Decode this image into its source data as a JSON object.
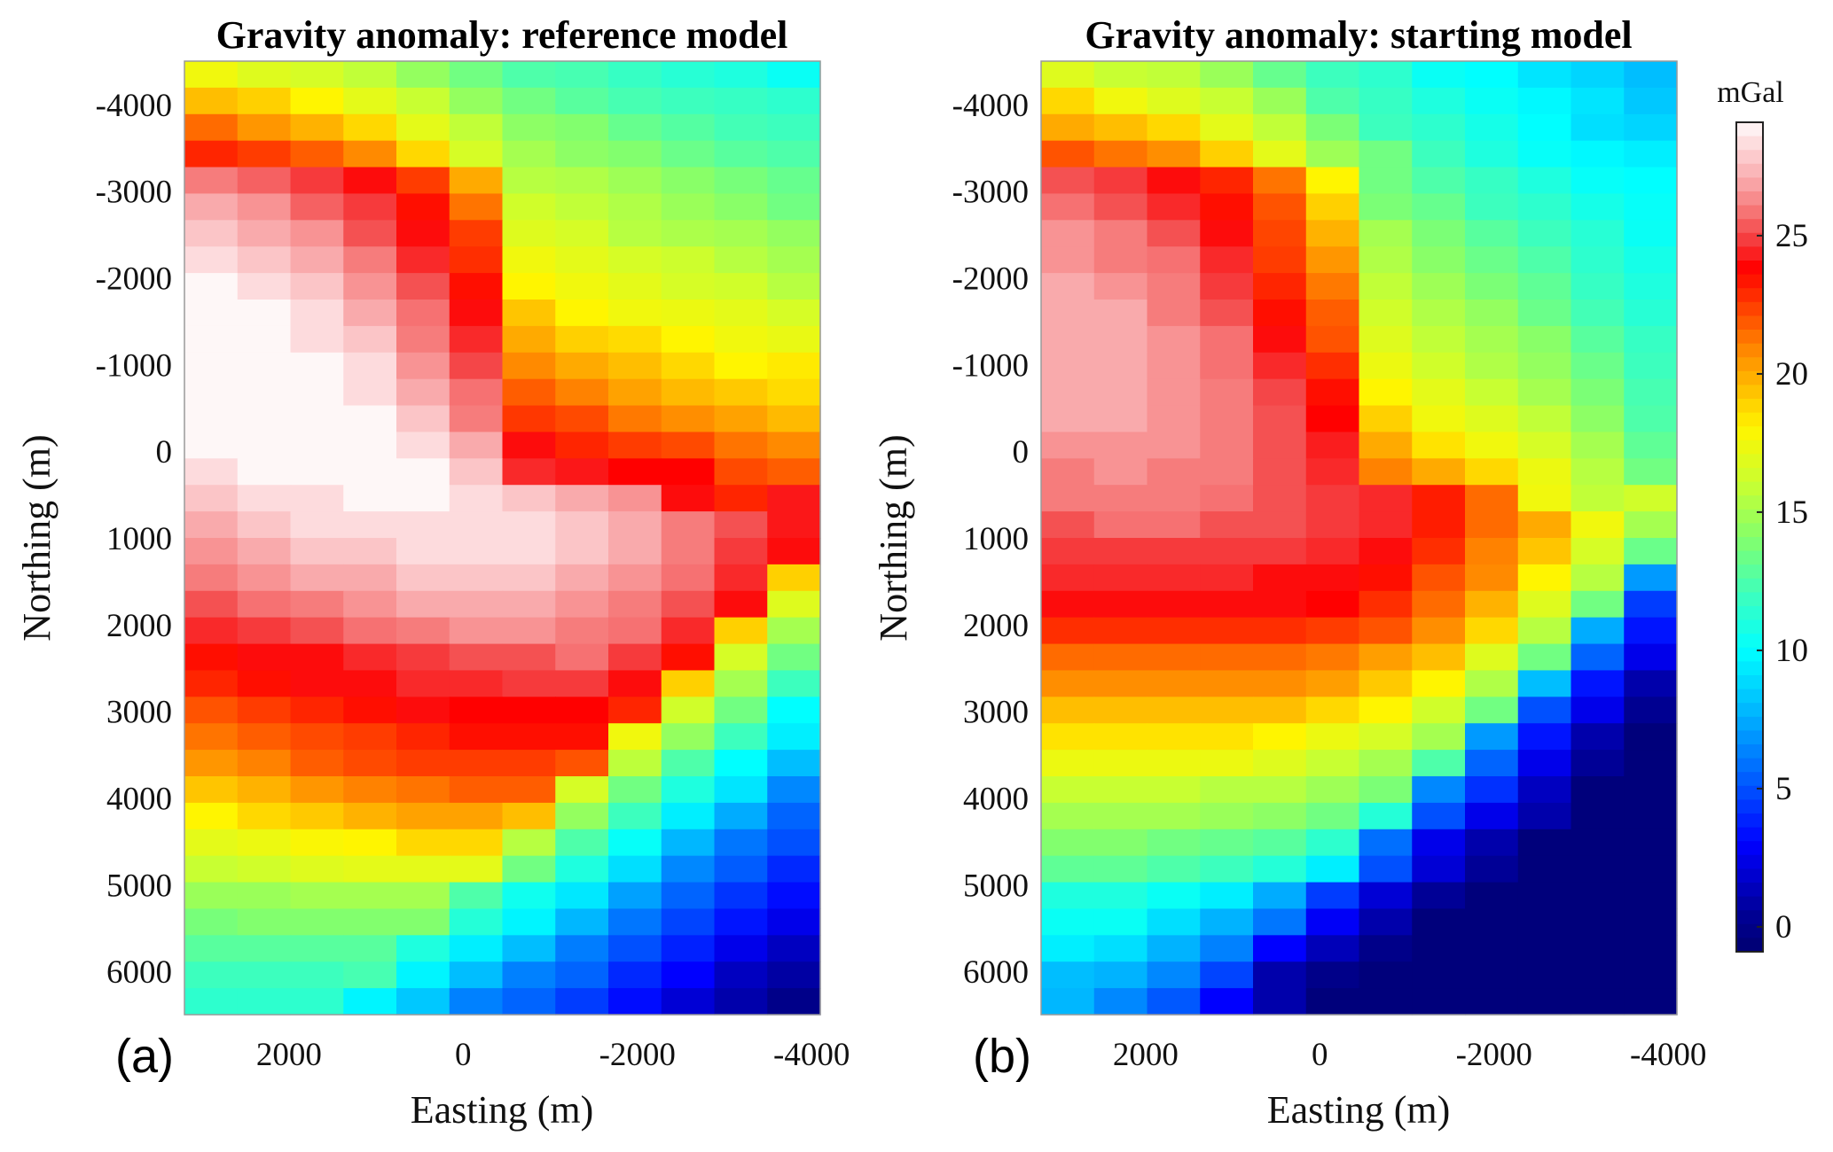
{
  "chart_data": [
    {
      "type": "heatmap",
      "panel_label": "(a)",
      "title": "Gravity anomaly: reference model",
      "xlabel": "Easting (m)",
      "ylabel": "Northing (m)",
      "xlim": [
        3200,
        -4100
      ],
      "ylim": [
        -4500,
        6500
      ],
      "x_reversed": true,
      "y_reversed": true,
      "xticks": [
        2000,
        0,
        -2000,
        -4000
      ],
      "xtick_labels": [
        "2000",
        "0",
        "-2000",
        "-4000"
      ],
      "yticks": [
        -4000,
        -3000,
        -2000,
        -1000,
        0,
        1000,
        2000,
        3000,
        4000,
        5000,
        6000
      ],
      "ytick_labels": [
        "-4000",
        "-3000",
        "-2000",
        "-1000",
        "0",
        "1000",
        "2000",
        "3000",
        "4000",
        "5000",
        "6000"
      ],
      "grid": false,
      "n_cols": 12,
      "n_rows": 36,
      "units": "mGal",
      "values": [
        [
          17.5,
          16.8,
          16.5,
          15.8,
          14.5,
          13.5,
          12.5,
          12.3,
          11.8,
          11.3,
          11,
          10.3
        ],
        [
          19.5,
          19,
          18,
          17,
          16,
          14.5,
          13.5,
          12.8,
          12.3,
          12,
          11.8,
          11.5
        ],
        [
          21.5,
          20.5,
          19.8,
          18.8,
          17,
          15.8,
          14.3,
          14,
          13.2,
          12.7,
          12.2,
          12
        ],
        [
          23,
          22.5,
          21.8,
          20.8,
          18.8,
          16.5,
          15,
          14.3,
          14,
          13.3,
          12.8,
          12.5
        ],
        [
          26,
          25.5,
          24.8,
          24,
          22.5,
          20,
          15.5,
          15.3,
          14.8,
          14.2,
          13.7,
          13.2
        ],
        [
          27,
          26.5,
          25.5,
          24.8,
          23.5,
          21.3,
          16.3,
          15.8,
          15.3,
          14.7,
          14.2,
          13.5
        ],
        [
          27.7,
          27,
          26.5,
          25.2,
          24,
          22.5,
          16.8,
          16.5,
          15.5,
          15.2,
          15,
          14.5
        ],
        [
          28.3,
          27.7,
          27,
          26,
          24.5,
          22.8,
          17.5,
          17,
          16.5,
          16.2,
          15.5,
          15
        ],
        [
          29,
          28.3,
          27.7,
          26.5,
          25.2,
          23.5,
          18,
          17.5,
          17,
          16.5,
          16.3,
          15.5
        ],
        [
          29,
          29,
          28.3,
          27,
          25.8,
          24,
          19.3,
          18,
          17.5,
          17.3,
          17,
          16.5
        ],
        [
          29,
          29,
          28.3,
          27.7,
          26,
          24.5,
          20,
          19,
          18.7,
          18,
          17.5,
          17.2
        ],
        [
          29,
          29,
          29,
          28.3,
          26.5,
          25,
          20.8,
          20,
          19.5,
          18.8,
          18,
          18.3
        ],
        [
          29,
          29,
          29,
          28.3,
          27,
          25.8,
          21.8,
          21,
          20.2,
          19.6,
          19.2,
          18.7
        ],
        [
          29,
          29,
          29,
          29,
          27.7,
          26,
          22.6,
          22.2,
          21.2,
          20.7,
          20.2,
          19.6
        ],
        [
          29,
          29,
          29,
          29,
          28.3,
          27,
          24,
          23,
          22.5,
          22.2,
          21.3,
          20.8
        ],
        [
          28.3,
          29,
          29,
          29,
          29,
          27.7,
          24.5,
          24.2,
          23.8,
          23.8,
          22.2,
          21.8
        ],
        [
          27.7,
          28.3,
          28.3,
          29,
          29,
          28.3,
          27.7,
          27,
          26.5,
          24,
          23,
          24.2
        ],
        [
          27,
          27.7,
          28.3,
          28.3,
          28.3,
          28.3,
          28.3,
          27.7,
          27,
          26,
          25.2,
          24.2
        ],
        [
          26.5,
          27,
          27.7,
          27.7,
          28.3,
          28.3,
          28.3,
          27.7,
          27,
          26,
          24.8,
          24
        ],
        [
          26,
          26.5,
          27,
          27,
          27.7,
          27.7,
          27.7,
          27,
          26.5,
          25.8,
          24.5,
          19
        ],
        [
          25.2,
          25.8,
          26,
          26.5,
          27,
          27,
          27,
          26.5,
          26,
          25.2,
          24,
          16.8
        ],
        [
          24.5,
          24.8,
          25.2,
          25.8,
          26,
          26.5,
          26.5,
          26,
          25.8,
          24.5,
          19,
          15
        ],
        [
          23.5,
          24,
          24,
          24.5,
          24.8,
          25.2,
          25.2,
          25.8,
          24.8,
          23.5,
          16.5,
          13.5
        ],
        [
          23,
          23.5,
          24,
          24,
          24.5,
          24.5,
          24.8,
          24.8,
          24,
          19,
          15,
          12
        ],
        [
          22,
          22.5,
          23,
          23.5,
          24,
          23.8,
          23.8,
          23.8,
          23,
          16.3,
          13.5,
          10
        ],
        [
          21.3,
          21.8,
          22.2,
          22.5,
          23,
          23.5,
          23.5,
          23.5,
          17.5,
          14.5,
          12,
          9.5
        ],
        [
          20.5,
          21,
          21.8,
          22.2,
          22.5,
          22.5,
          22.5,
          22,
          15.7,
          12.5,
          10,
          8
        ],
        [
          19.3,
          19.8,
          20.5,
          21,
          21.3,
          21.8,
          21.8,
          16.5,
          13.5,
          11,
          9.2,
          6.5
        ],
        [
          18,
          18.8,
          19.2,
          19.8,
          20.2,
          20.2,
          19.5,
          14.5,
          12,
          9.5,
          7.5,
          5.5
        ],
        [
          17,
          17.3,
          17.8,
          18,
          18.8,
          18.8,
          15.5,
          12.5,
          10.2,
          7.8,
          6,
          5
        ],
        [
          16,
          16.3,
          16.8,
          17,
          17,
          17,
          13.5,
          11,
          9,
          6.5,
          5.3,
          4
        ],
        [
          14.7,
          14.7,
          15,
          15,
          15,
          12.5,
          10.5,
          9.3,
          7.2,
          5.5,
          4.3,
          3.3
        ],
        [
          13.7,
          14,
          14,
          14,
          14,
          11.2,
          9.7,
          7.8,
          6,
          4.7,
          3.5,
          2.5
        ],
        [
          12.8,
          12.8,
          12.8,
          12.8,
          11,
          9.5,
          8,
          6.2,
          5,
          3.8,
          2.5,
          1.5
        ],
        [
          12,
          12,
          12,
          12.3,
          9.7,
          8,
          6.3,
          5.5,
          4,
          3,
          1.5,
          0.8
        ],
        [
          11.5,
          11.5,
          11.5,
          9.7,
          8.3,
          6.3,
          5.5,
          4.5,
          3.3,
          2,
          1,
          0
        ]
      ]
    },
    {
      "type": "heatmap",
      "panel_label": "(b)",
      "title": "Gravity anomaly: starting model",
      "xlabel": "Easting (m)",
      "ylabel": "Northing (m)",
      "xlim": [
        3200,
        -4100
      ],
      "ylim": [
        -4500,
        6500
      ],
      "x_reversed": true,
      "y_reversed": true,
      "xticks": [
        2000,
        0,
        -2000,
        -4000
      ],
      "xtick_labels": [
        "2000",
        "0",
        "-2000",
        "-4000"
      ],
      "yticks": [
        -4000,
        -3000,
        -2000,
        -1000,
        0,
        1000,
        2000,
        3000,
        4000,
        5000,
        6000
      ],
      "ytick_labels": [
        "-4000",
        "-3000",
        "-2000",
        "-1000",
        "0",
        "1000",
        "2000",
        "3000",
        "4000",
        "5000",
        "6000"
      ],
      "grid": false,
      "n_cols": 12,
      "n_rows": 36,
      "units": "mGal",
      "values": [
        [
          16.8,
          16,
          15.8,
          14.7,
          13.2,
          12,
          11.5,
          10.3,
          10,
          9.2,
          8.7,
          8
        ],
        [
          18.8,
          17.5,
          16.8,
          16,
          14.7,
          12.5,
          11.8,
          11,
          10.3,
          9.8,
          9.2,
          8.3
        ],
        [
          20,
          19.5,
          18.8,
          17,
          15.8,
          13.8,
          12,
          11.5,
          10.7,
          10,
          9,
          8.7
        ],
        [
          22,
          21.3,
          20.7,
          19,
          17,
          14.8,
          13.5,
          12,
          11,
          10.2,
          9.8,
          9.5
        ],
        [
          25.2,
          24.8,
          24,
          23,
          21.3,
          18,
          13.5,
          12.5,
          11.8,
          11,
          10.2,
          10
        ],
        [
          25.8,
          25.2,
          24.5,
          23.5,
          22,
          19,
          13.8,
          13.2,
          12,
          11.5,
          10.7,
          10.2
        ],
        [
          26.5,
          26,
          25.2,
          24,
          22.3,
          19.8,
          15,
          13.8,
          12.8,
          12,
          11.3,
          10.3
        ],
        [
          26.5,
          26,
          25.8,
          24.5,
          22.5,
          20.5,
          15.3,
          14.2,
          13.3,
          12.5,
          11.5,
          10.7
        ],
        [
          27,
          26.5,
          26,
          24.8,
          23,
          21.2,
          15.8,
          14.8,
          13.8,
          13,
          11.8,
          11
        ],
        [
          27,
          27,
          26,
          25.2,
          23.5,
          21.8,
          16.3,
          15.3,
          14.5,
          13.3,
          12.2,
          11.3
        ],
        [
          27,
          27,
          26.5,
          25.8,
          24,
          22,
          16.8,
          15.8,
          15,
          14.2,
          12.8,
          11.8
        ],
        [
          27,
          27,
          26.5,
          25.8,
          24.5,
          22.8,
          17.3,
          16.3,
          15.3,
          14.5,
          13.3,
          12
        ],
        [
          27,
          27,
          26.5,
          26,
          25,
          23.5,
          18,
          17,
          16,
          15,
          13.8,
          12.3
        ],
        [
          27,
          27,
          26.5,
          26,
          25.2,
          23.8,
          19,
          17.5,
          16.8,
          15.8,
          14.3,
          12.5
        ],
        [
          26.5,
          26.5,
          26.5,
          26,
          25.2,
          24.3,
          20,
          18.5,
          17.5,
          16.5,
          15,
          13
        ],
        [
          26,
          26.5,
          26,
          26,
          25.2,
          24.5,
          21,
          20,
          18.8,
          17.3,
          15.5,
          13.5
        ],
        [
          26,
          26,
          26,
          25.8,
          25.2,
          24.8,
          24.5,
          23.2,
          21.5,
          17.5,
          15.8,
          16.3
        ],
        [
          25.2,
          25.8,
          25.8,
          25.2,
          25.2,
          24.8,
          24.5,
          23.2,
          21.5,
          20,
          17.5,
          15
        ],
        [
          24.8,
          24.8,
          24.8,
          24.8,
          24.8,
          24.5,
          24,
          22.8,
          21,
          19.3,
          16.5,
          13.3
        ],
        [
          24.5,
          24.5,
          24.5,
          24.5,
          24,
          24,
          23.5,
          22,
          20.8,
          18,
          15.5,
          7
        ],
        [
          24,
          24,
          24,
          24,
          24,
          23.8,
          22.8,
          21.5,
          19.8,
          16.8,
          13.5,
          4.5
        ],
        [
          22.8,
          22.8,
          22.8,
          22.8,
          22.8,
          22.5,
          22,
          20.7,
          18.8,
          15.5,
          7.5,
          3.5
        ],
        [
          21.5,
          21.5,
          21.5,
          21.5,
          21.5,
          21.2,
          20.3,
          19.5,
          16.8,
          13.5,
          5.5,
          2.5
        ],
        [
          20.7,
          20.7,
          20.7,
          20.7,
          20.7,
          20.3,
          19.2,
          18,
          15.3,
          8,
          3.5,
          1
        ],
        [
          19.5,
          19.5,
          19.5,
          19.5,
          19.5,
          18.8,
          18,
          16.3,
          13.5,
          5,
          2.5,
          0.3
        ],
        [
          18.5,
          18.5,
          18.5,
          18.5,
          18,
          17.3,
          16.5,
          15,
          7,
          3.5,
          1,
          -0.5
        ],
        [
          17.3,
          17.3,
          17.3,
          17.3,
          16.8,
          16,
          15,
          12.5,
          5.5,
          2.5,
          0.5,
          -0.5
        ],
        [
          16,
          16,
          16,
          15.5,
          15.5,
          14.8,
          13.8,
          6.5,
          4.2,
          1.5,
          -0.5,
          -0.5
        ],
        [
          15,
          15,
          15,
          14.7,
          14.3,
          13.5,
          11.2,
          5,
          2.5,
          1,
          -0.5,
          -0.5
        ],
        [
          14,
          14,
          13.5,
          13.2,
          12.8,
          11.5,
          5.8,
          2.5,
          1,
          -0.5,
          -0.5,
          -0.5
        ],
        [
          13,
          13,
          12.5,
          12,
          11.2,
          9.5,
          5,
          2,
          0.5,
          -0.5,
          -0.5,
          -0.5
        ],
        [
          11,
          11,
          10.3,
          9.5,
          7.5,
          4.5,
          2,
          0.5,
          -0.5,
          -0.5,
          -0.5,
          -0.5
        ],
        [
          10.3,
          10.3,
          9,
          7.7,
          6,
          2.8,
          1,
          -0.5,
          -0.5,
          -0.5,
          -0.5,
          -0.5
        ],
        [
          9.5,
          9,
          7.7,
          6.3,
          3,
          1.3,
          0,
          -0.5,
          -0.5,
          -0.5,
          -0.5,
          -0.5
        ],
        [
          8,
          7.7,
          6.5,
          4.7,
          1,
          0,
          -0.5,
          -0.5,
          -0.5,
          -0.5,
          -0.5,
          -0.5
        ],
        [
          7.8,
          6.5,
          5.2,
          3,
          1,
          -0.5,
          -0.5,
          -0.5,
          -0.5,
          -0.5,
          -0.5,
          -0.5
        ]
      ]
    }
  ],
  "colorbar": {
    "label": "mGal",
    "clim": [
      -0.9,
      29.1
    ],
    "ticks": [
      0,
      5,
      10,
      15,
      20,
      25
    ],
    "tick_labels": [
      "0",
      "5",
      "10",
      "15",
      "20",
      "25"
    ]
  }
}
